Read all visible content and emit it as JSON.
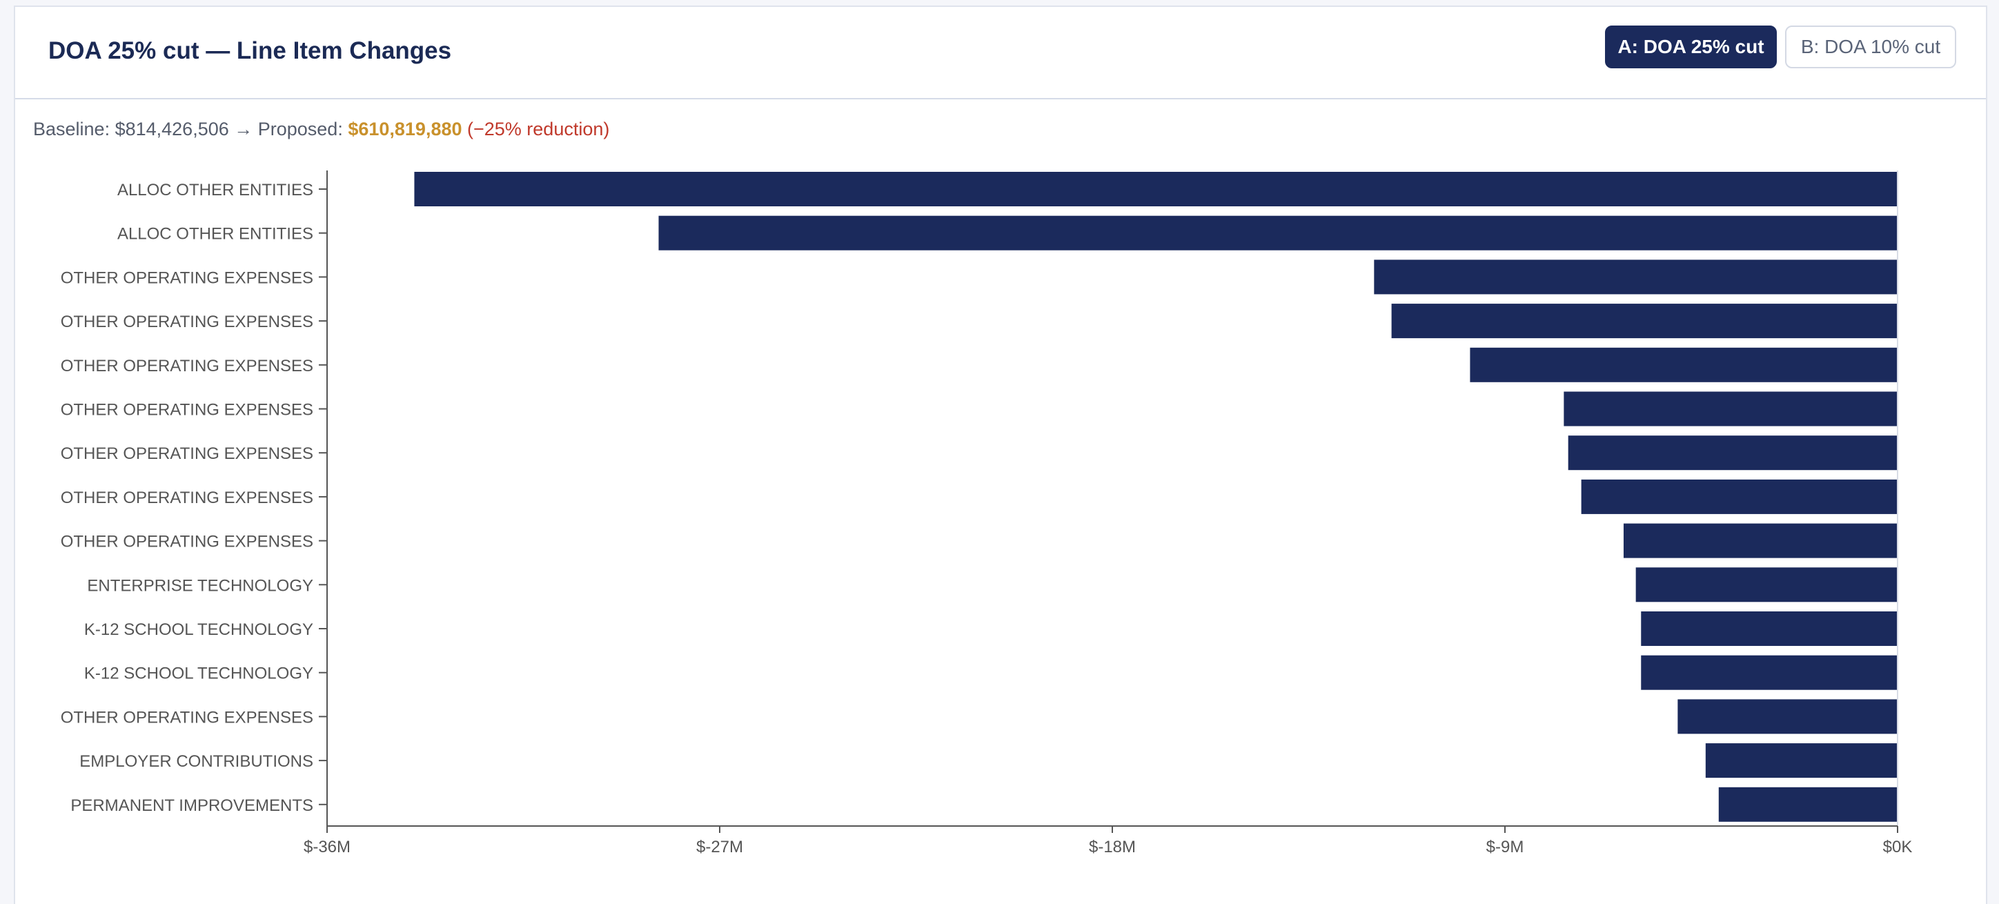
{
  "header": {
    "title": "DOA 25% cut — Line Item Changes",
    "tabs": [
      {
        "label": "A: DOA 25% cut",
        "active": true
      },
      {
        "label": "B: DOA 10% cut",
        "active": false
      }
    ]
  },
  "summary": {
    "baseline_text": "Baseline: $814,426,506 → Proposed: ",
    "proposed": "$610,819,880",
    "reduction": " (−25% reduction)"
  },
  "colors": {
    "bar": "#1b2a5c",
    "accent": "#c9912c",
    "negative": "#c0392b",
    "axis": "#555555"
  },
  "chart_data": {
    "type": "bar",
    "orientation": "horizontal",
    "categories": [
      "ALLOC OTHER ENTITIES",
      "ALLOC OTHER ENTITIES",
      "OTHER OPERATING EXPENSES",
      "OTHER OPERATING EXPENSES",
      "OTHER OPERATING EXPENSES",
      "OTHER OPERATING EXPENSES",
      "OTHER OPERATING EXPENSES",
      "OTHER OPERATING EXPENSES",
      "OTHER OPERATING EXPENSES",
      "ENTERPRISE TECHNOLOGY",
      "K-12 SCHOOL TECHNOLOGY",
      "K-12 SCHOOL TECHNOLOGY",
      "OTHER OPERATING EXPENSES",
      "EMPLOYER CONTRIBUTIONS",
      "PERMANENT IMPROVEMENTS"
    ],
    "values": [
      -34000000,
      -28400000,
      -12000000,
      -11600000,
      -9800000,
      -7650000,
      -7550000,
      -7250000,
      -6280000,
      -6000000,
      -5880000,
      -5880000,
      -5040000,
      -4400000,
      -4100000
    ],
    "xlim": [
      -36000000,
      0
    ],
    "xticks": [
      -36000000,
      -27000000,
      -18000000,
      -9000000,
      0
    ],
    "xtick_labels": [
      "$-36M",
      "$-27M",
      "$-18M",
      "$-9M",
      "$0K"
    ],
    "xlabel": "",
    "ylabel": "",
    "grid": false,
    "legend": "none"
  }
}
